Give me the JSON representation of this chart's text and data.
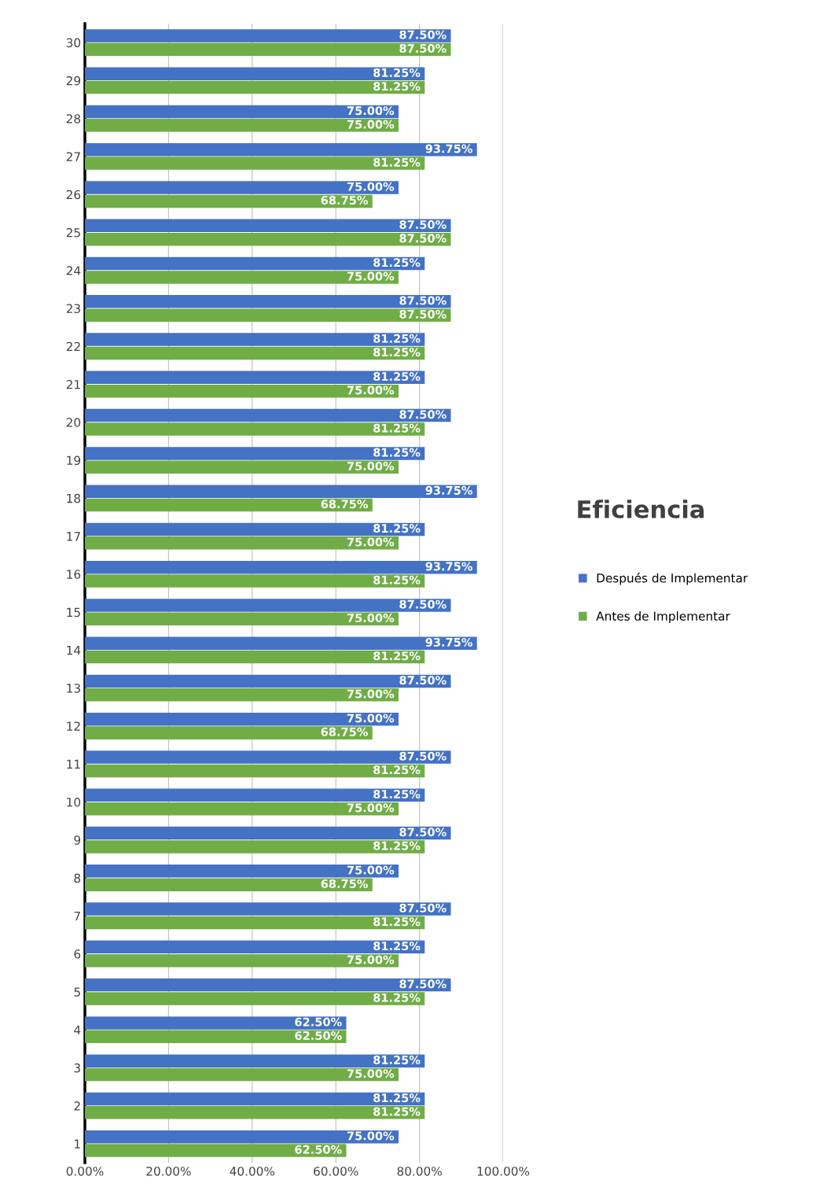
{
  "chart_data": {
    "type": "bar",
    "orientation": "horizontal",
    "title": "Eficiencia",
    "categories": [
      "30",
      "29",
      "28",
      "27",
      "26",
      "25",
      "24",
      "23",
      "22",
      "21",
      "20",
      "19",
      "18",
      "17",
      "16",
      "15",
      "14",
      "13",
      "12",
      "11",
      "10",
      "9",
      "8",
      "7",
      "6",
      "5",
      "4",
      "3",
      "2",
      "1"
    ],
    "series": [
      {
        "name": "Después de Implementar",
        "color": "#4472c4",
        "values": [
          87.5,
          81.25,
          75,
          93.75,
          75,
          87.5,
          81.25,
          87.5,
          81.25,
          81.25,
          87.5,
          81.25,
          93.75,
          81.25,
          93.75,
          87.5,
          93.75,
          87.5,
          75,
          87.5,
          81.25,
          87.5,
          75,
          87.5,
          81.25,
          87.5,
          62.5,
          81.25,
          81.25,
          75
        ],
        "value_labels": [
          "87.50%",
          "81.25%",
          "75.00%",
          "93.75%",
          "75.00%",
          "87.50%",
          "81.25%",
          "87.50%",
          "81.25%",
          "81.25%",
          "87.50%",
          "81.25%",
          "93.75%",
          "81.25%",
          "93.75%",
          "87.50%",
          "93.75%",
          "87.50%",
          "75.00%",
          "87.50%",
          "81.25%",
          "87.50%",
          "75.00%",
          "87.50%",
          "81.25%",
          "87.50%",
          "62.50%",
          "81.25%",
          "81.25%",
          "75.00%"
        ]
      },
      {
        "name": "Antes de Implementar",
        "color": "#70ad47",
        "values": [
          87.5,
          81.25,
          75,
          81.25,
          68.75,
          87.5,
          75,
          87.5,
          81.25,
          75,
          81.25,
          75,
          68.75,
          75,
          81.25,
          75,
          81.25,
          75,
          68.75,
          81.25,
          75,
          81.25,
          68.75,
          81.25,
          75,
          81.25,
          62.5,
          75,
          81.25,
          62.5
        ],
        "value_labels": [
          "87.50%",
          "81.25%",
          "75.00%",
          "81.25%",
          "68.75%",
          "87.50%",
          "75.00%",
          "87.50%",
          "81.25%",
          "75.00%",
          "81.25%",
          "75.00%",
          "68.75%",
          "75.00%",
          "81.25%",
          "75.00%",
          "81.25%",
          "75.00%",
          "68.75%",
          "81.25%",
          "75.00%",
          "81.25%",
          "68.75%",
          "81.25%",
          "75.00%",
          "81.25%",
          "62.50%",
          "75.00%",
          "81.25%",
          "62.50%"
        ]
      }
    ],
    "xlim": [
      0,
      100
    ],
    "xticks": [
      {
        "value": 0,
        "label": "0.00%"
      },
      {
        "value": 20,
        "label": "20.00%"
      },
      {
        "value": 40,
        "label": "40.00%"
      },
      {
        "value": 60,
        "label": "60.00%"
      },
      {
        "value": 80,
        "label": "80.00%"
      },
      {
        "value": 100,
        "label": "100.00%"
      }
    ],
    "grid": "x",
    "legend": "right"
  }
}
